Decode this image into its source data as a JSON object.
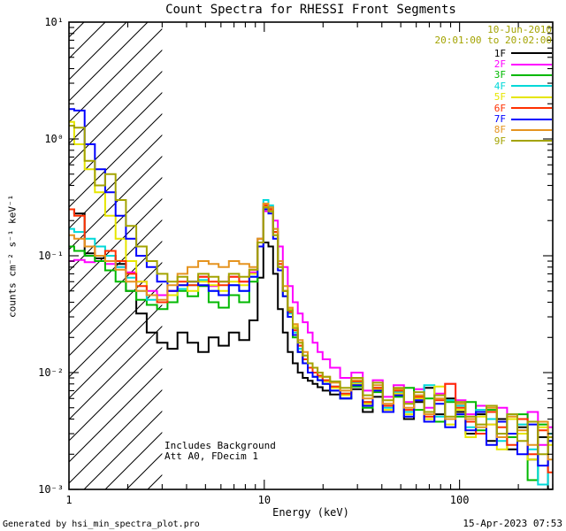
{
  "title": "Count Spectra for RHESSI Front Segments",
  "header": {
    "date": "10-Jun-2010",
    "time_range": "20:01:00 to 20:02:00",
    "color": "#a3a300"
  },
  "axes": {
    "x": {
      "label": "Energy (keV)",
      "scale": "log",
      "range": [
        1,
        300
      ],
      "ticks": [
        {
          "value": 1,
          "label": "1"
        },
        {
          "value": 10,
          "label": "10"
        },
        {
          "value": 100,
          "label": "100"
        }
      ]
    },
    "y": {
      "label": "counts cm⁻² s⁻¹ keV⁻¹",
      "scale": "log",
      "range": [
        0.001,
        10
      ],
      "ticks": [
        {
          "value": 0.001,
          "label": "10⁻³"
        },
        {
          "value": 0.01,
          "label": "10⁻²"
        },
        {
          "value": 0.1,
          "label": "10⁻¹"
        },
        {
          "value": 1,
          "label": "10⁰"
        },
        {
          "value": 10,
          "label": "10¹"
        }
      ]
    }
  },
  "annotations": {
    "line1": "Includes Background",
    "line2": "Att A0, FDecim 1"
  },
  "footer": {
    "left": "Generated by hsi_min_spectra_plot.pro",
    "right": "15-Apr-2023 07:53"
  },
  "hatch_region": {
    "x_start": 1,
    "x_end": 3
  },
  "chart_data": {
    "type": "line",
    "style": "histogram-step",
    "xscale": "log",
    "yscale": "log",
    "xlim": [
      1,
      300
    ],
    "ylim": [
      0.001,
      10
    ],
    "x": [
      1.0,
      1.13,
      1.28,
      1.44,
      1.63,
      1.84,
      2.08,
      2.35,
      2.66,
      3.0,
      3.4,
      3.8,
      4.3,
      4.9,
      5.5,
      6.2,
      7.0,
      7.9,
      8.9,
      9.6,
      10.2,
      10.8,
      11.4,
      12.1,
      12.8,
      13.6,
      14.4,
      15.3,
      16.2,
      17.2,
      18.2,
      19.3,
      20.5,
      23,
      26,
      30,
      34,
      38,
      43,
      49,
      55,
      62,
      70,
      79,
      90,
      101,
      114,
      129,
      146,
      165,
      186,
      210,
      237,
      268,
      300
    ],
    "series": [
      {
        "name": "1F",
        "color": "#000000",
        "values": [
          0.25,
          0.23,
          0.105,
          0.095,
          0.1,
          0.085,
          0.05,
          0.032,
          0.022,
          0.018,
          0.016,
          0.022,
          0.018,
          0.015,
          0.02,
          0.017,
          0.022,
          0.019,
          0.028,
          0.065,
          0.13,
          0.12,
          0.07,
          0.035,
          0.022,
          0.015,
          0.012,
          0.01,
          0.009,
          0.0085,
          0.008,
          0.0075,
          0.007,
          0.0065,
          0.006,
          0.0072,
          0.0046,
          0.0062,
          0.0052,
          0.0068,
          0.004,
          0.0056,
          0.0074,
          0.0044,
          0.006,
          0.0046,
          0.003,
          0.0044,
          0.0026,
          0.004,
          0.0022,
          0.0034,
          0.0018,
          0.0028,
          0.001
        ]
      },
      {
        "name": "2F",
        "color": "#ff00ff",
        "values": [
          0.09,
          0.092,
          0.088,
          0.09,
          0.085,
          0.08,
          0.072,
          0.06,
          0.05,
          0.046,
          0.05,
          0.056,
          0.06,
          0.066,
          0.055,
          0.06,
          0.066,
          0.06,
          0.072,
          0.13,
          0.24,
          0.26,
          0.2,
          0.12,
          0.08,
          0.055,
          0.04,
          0.032,
          0.027,
          0.022,
          0.018,
          0.015,
          0.013,
          0.011,
          0.009,
          0.01,
          0.007,
          0.0086,
          0.0062,
          0.0078,
          0.0056,
          0.0072,
          0.005,
          0.0066,
          0.008,
          0.0058,
          0.0044,
          0.0052,
          0.0036,
          0.005,
          0.004,
          0.003,
          0.0046,
          0.0024,
          0.0034
        ]
      },
      {
        "name": "3F",
        "color": "#00b800",
        "values": [
          0.12,
          0.11,
          0.1,
          0.09,
          0.075,
          0.06,
          0.05,
          0.042,
          0.038,
          0.035,
          0.04,
          0.05,
          0.045,
          0.055,
          0.04,
          0.036,
          0.046,
          0.04,
          0.06,
          0.13,
          0.28,
          0.26,
          0.16,
          0.08,
          0.045,
          0.03,
          0.02,
          0.015,
          0.012,
          0.01,
          0.0092,
          0.0086,
          0.008,
          0.007,
          0.006,
          0.0076,
          0.005,
          0.0068,
          0.0046,
          0.0062,
          0.0074,
          0.0048,
          0.006,
          0.0038,
          0.0056,
          0.0042,
          0.0056,
          0.0032,
          0.0048,
          0.0038,
          0.0028,
          0.0044,
          0.0012,
          0.0036,
          0.0026
        ]
      },
      {
        "name": "4F",
        "color": "#00d8d8",
        "values": [
          0.17,
          0.16,
          0.14,
          0.12,
          0.1,
          0.08,
          0.065,
          0.05,
          0.042,
          0.04,
          0.046,
          0.052,
          0.056,
          0.062,
          0.05,
          0.046,
          0.056,
          0.05,
          0.066,
          0.14,
          0.3,
          0.27,
          0.17,
          0.09,
          0.05,
          0.032,
          0.022,
          0.016,
          0.013,
          0.011,
          0.01,
          0.0092,
          0.0086,
          0.0076,
          0.0066,
          0.0082,
          0.0056,
          0.0074,
          0.005,
          0.0068,
          0.0046,
          0.0062,
          0.0078,
          0.0042,
          0.0058,
          0.0052,
          0.0034,
          0.0048,
          0.004,
          0.0026,
          0.0044,
          0.0036,
          0.0022,
          0.0011,
          0.003
        ]
      },
      {
        "name": "5F",
        "color": "#e6e600",
        "values": [
          1.4,
          0.9,
          0.55,
          0.35,
          0.22,
          0.14,
          0.09,
          0.06,
          0.046,
          0.04,
          0.046,
          0.056,
          0.05,
          0.06,
          0.056,
          0.05,
          0.06,
          0.056,
          0.07,
          0.13,
          0.26,
          0.24,
          0.15,
          0.08,
          0.05,
          0.035,
          0.025,
          0.018,
          0.014,
          0.012,
          0.01,
          0.0092,
          0.0084,
          0.0074,
          0.0064,
          0.008,
          0.0054,
          0.0072,
          0.0048,
          0.0066,
          0.0044,
          0.006,
          0.004,
          0.0076,
          0.0036,
          0.0048,
          0.0028,
          0.0042,
          0.0036,
          0.0022,
          0.004,
          0.003,
          0.0018,
          0.0034,
          0.0024
        ]
      },
      {
        "name": "6F",
        "color": "#ff3000",
        "values": [
          0.25,
          0.22,
          0.12,
          0.1,
          0.11,
          0.09,
          0.07,
          0.055,
          0.046,
          0.04,
          0.05,
          0.06,
          0.056,
          0.066,
          0.06,
          0.056,
          0.066,
          0.06,
          0.076,
          0.14,
          0.27,
          0.25,
          0.16,
          0.085,
          0.05,
          0.033,
          0.023,
          0.017,
          0.013,
          0.011,
          0.01,
          0.0094,
          0.0086,
          0.0076,
          0.0066,
          0.0084,
          0.0056,
          0.0074,
          0.0052,
          0.007,
          0.0048,
          0.0062,
          0.0042,
          0.0058,
          0.008,
          0.005,
          0.0038,
          0.003,
          0.0046,
          0.0034,
          0.0024,
          0.004,
          0.002,
          0.0032,
          0.0014
        ]
      },
      {
        "name": "7F",
        "color": "#0000ff",
        "values": [
          1.8,
          1.75,
          0.9,
          0.55,
          0.35,
          0.22,
          0.14,
          0.1,
          0.08,
          0.06,
          0.05,
          0.056,
          0.06,
          0.056,
          0.05,
          0.046,
          0.056,
          0.05,
          0.066,
          0.12,
          0.25,
          0.23,
          0.14,
          0.075,
          0.045,
          0.03,
          0.021,
          0.015,
          0.012,
          0.01,
          0.0092,
          0.0086,
          0.008,
          0.007,
          0.006,
          0.0078,
          0.0052,
          0.007,
          0.0046,
          0.0064,
          0.0042,
          0.0058,
          0.0038,
          0.0054,
          0.0034,
          0.0044,
          0.0032,
          0.0046,
          0.0024,
          0.0038,
          0.003,
          0.002,
          0.0036,
          0.0016,
          0.0026
        ]
      },
      {
        "name": "8F",
        "color": "#e59420",
        "values": [
          0.15,
          0.14,
          0.12,
          0.1,
          0.09,
          0.076,
          0.06,
          0.05,
          0.046,
          0.042,
          0.056,
          0.07,
          0.08,
          0.09,
          0.085,
          0.08,
          0.09,
          0.085,
          0.08,
          0.14,
          0.28,
          0.26,
          0.17,
          0.09,
          0.055,
          0.036,
          0.026,
          0.019,
          0.015,
          0.012,
          0.011,
          0.01,
          0.0092,
          0.0082,
          0.007,
          0.0086,
          0.006,
          0.0078,
          0.0054,
          0.0072,
          0.005,
          0.0064,
          0.0044,
          0.006,
          0.004,
          0.0054,
          0.004,
          0.0034,
          0.005,
          0.0028,
          0.0042,
          0.0032,
          0.0024,
          0.0038,
          0.0018
        ]
      },
      {
        "name": "9F",
        "color": "#a3a300",
        "values": [
          1.3,
          1.25,
          0.65,
          0.4,
          0.5,
          0.3,
          0.18,
          0.12,
          0.09,
          0.07,
          0.06,
          0.066,
          0.06,
          0.07,
          0.066,
          0.06,
          0.07,
          0.066,
          0.076,
          0.13,
          0.26,
          0.24,
          0.15,
          0.08,
          0.05,
          0.034,
          0.024,
          0.018,
          0.014,
          0.012,
          0.011,
          0.01,
          0.0092,
          0.0084,
          0.0074,
          0.009,
          0.0064,
          0.0082,
          0.0058,
          0.0074,
          0.0054,
          0.0068,
          0.0046,
          0.0064,
          0.0042,
          0.0056,
          0.0042,
          0.0036,
          0.0052,
          0.003,
          0.0044,
          0.0026,
          0.0038,
          0.002,
          0.0028
        ]
      }
    ]
  }
}
